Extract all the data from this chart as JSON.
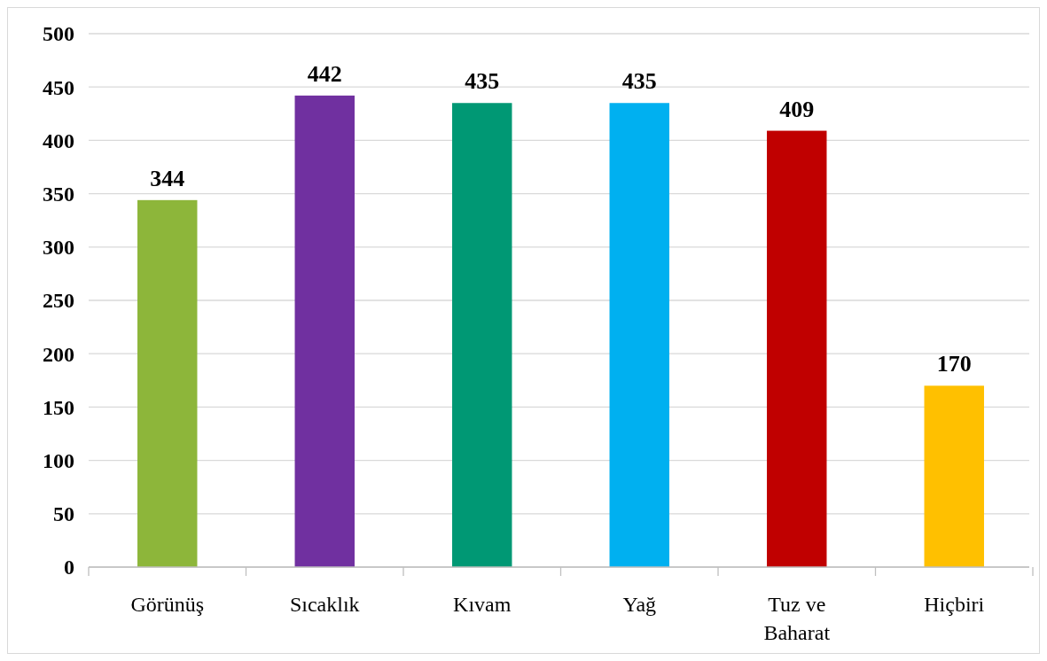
{
  "chart_data": {
    "type": "bar",
    "categories": [
      "Görünüş",
      "Sıcaklık",
      "Kıvam",
      "Yağ",
      "Tuz ve Baharat",
      "Hiçbiri"
    ],
    "values": [
      344,
      442,
      435,
      435,
      409,
      170
    ],
    "colors": [
      "#8db63a",
      "#7030a0",
      "#009874",
      "#00b0f0",
      "#c00000",
      "#ffc000"
    ],
    "ylim": [
      0,
      500
    ],
    "yticks": [
      0,
      50,
      100,
      150,
      200,
      250,
      300,
      350,
      400,
      450,
      500
    ],
    "grid": "y",
    "data_labels": true
  }
}
